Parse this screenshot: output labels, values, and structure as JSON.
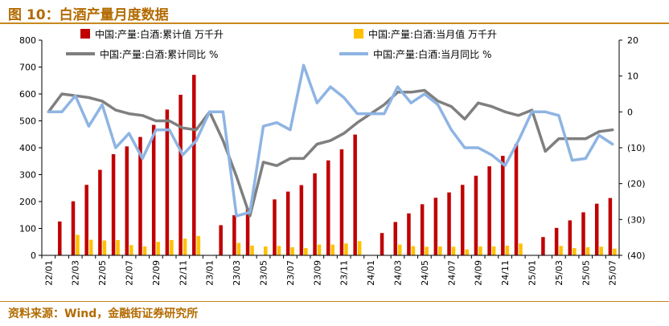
{
  "figure": {
    "title": "图 10：白酒产量月度数据",
    "source": "资料来源：Wind，金融街证券研究所"
  },
  "chart_data": {
    "type": "bar",
    "categories": [
      "22/01",
      "22/02",
      "22/03",
      "22/04",
      "22/05",
      "22/06",
      "22/07",
      "22/08",
      "22/09",
      "22/10",
      "22/11",
      "22/12",
      "23/01",
      "23/02",
      "23/03",
      "23/04",
      "23/05",
      "23/06",
      "23/07",
      "23/08",
      "23/09",
      "23/10",
      "23/11",
      "23/12",
      "24/01",
      "24/02",
      "24/03",
      "24/04",
      "24/05",
      "24/06",
      "24/07",
      "24/08",
      "24/09",
      "24/10",
      "24/11",
      "24/12",
      "25/01",
      "25/02",
      "25/03",
      "25/04",
      "25/05",
      "25/06",
      "25/07"
    ],
    "x_tick_labels": [
      "22/01",
      "22/03",
      "22/05",
      "22/07",
      "22/09",
      "22/11",
      "23/01",
      "23/03",
      "23/05",
      "23/07",
      "23/09",
      "23/11",
      "24/01",
      "24/03",
      "24/05",
      "24/07",
      "24/09",
      "24/11",
      "25/01",
      "25/03",
      "25/05",
      "25/07"
    ],
    "left_axis": {
      "ylim": [
        0,
        800
      ],
      "ticks": [
        "0",
        "100",
        "200",
        "300",
        "400",
        "500",
        "600",
        "700",
        "800"
      ]
    },
    "right_axis": {
      "ylim": [
        -40,
        20
      ],
      "ticks": [
        "(40)",
        "(30)",
        "(20)",
        "(10)",
        "0",
        "10",
        "20"
      ],
      "tick_values": [
        -40,
        -30,
        -20,
        -10,
        0,
        10,
        20
      ]
    },
    "legend_placement": "top",
    "series": [
      {
        "name": "中国:产量:白酒:累计值  万千升",
        "type": "bar",
        "axis": "left",
        "color": "#c00000",
        "values": [
          null,
          126,
          201,
          262,
          318,
          376,
          405,
          440,
          485,
          542,
          597,
          671,
          null,
          112,
          149,
          175,
          null,
          208,
          237,
          261,
          305,
          353,
          394,
          449,
          null,
          83,
          124,
          156,
          190,
          214,
          234,
          262,
          296,
          331,
          370,
          414,
          null,
          68,
          102,
          130,
          160,
          192,
          213
        ]
      },
      {
        "name": "中国:产量:白酒:当月值  万千升",
        "type": "bar",
        "axis": "left",
        "color": "#ffc000",
        "values": [
          null,
          null,
          76,
          58,
          55,
          57,
          38,
          33,
          50,
          57,
          62,
          72,
          null,
          null,
          46,
          36,
          33,
          35,
          30,
          27,
          40,
          40,
          44,
          53,
          null,
          null,
          40,
          34,
          32,
          33,
          32,
          22,
          33,
          33,
          36,
          44,
          null,
          null,
          35,
          27,
          30,
          32,
          25
        ]
      },
      {
        "name": "中国:产量:白酒:累计同比  %",
        "type": "line",
        "axis": "right",
        "color": "#7f7f7f",
        "values": [
          0,
          5,
          4.5,
          4,
          3,
          0.5,
          -0.5,
          -1,
          -2.5,
          -2.5,
          -4.5,
          -5,
          0,
          -8,
          -18,
          -29,
          -14,
          -15,
          -13,
          -13,
          -9,
          -8,
          -6,
          -3,
          -0.5,
          2,
          5.5,
          5.5,
          6,
          3,
          1.5,
          -2,
          2.5,
          1.5,
          0,
          -1,
          0.5,
          -11,
          -7.5,
          -7.5,
          -7.5,
          -5.5,
          -5
        ]
      },
      {
        "name": "中国:产量:白酒:当月同比  %",
        "type": "line",
        "axis": "right",
        "color": "#8eb4e3",
        "values": [
          0,
          0,
          4.5,
          -4,
          2,
          -10,
          -6,
          -13,
          -5,
          -5,
          -12,
          -8,
          0,
          0,
          -29,
          -28,
          -4,
          -3,
          -5,
          13,
          2.5,
          7,
          4,
          -0.5,
          -0.5,
          -0.5,
          7,
          2.5,
          5,
          2,
          -5,
          -10,
          -10,
          -12,
          -15,
          -8,
          0,
          0,
          -1,
          -13.5,
          -13,
          -6.5,
          -9
        ]
      }
    ]
  }
}
